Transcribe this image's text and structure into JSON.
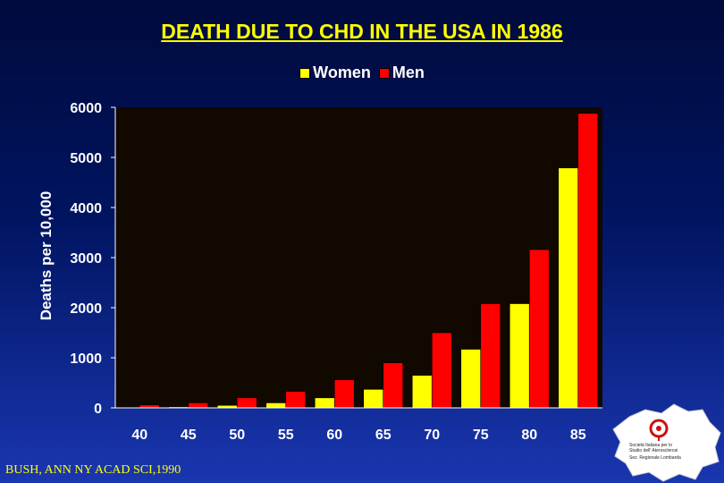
{
  "slide": {
    "source": "BUSH, ANN NY ACAD SCI,1990",
    "logo": {
      "line1": "Società Italiana per lo",
      "line2": "Studio dell' Aterosclerosi",
      "line3": "Sez. Regionale Lombarda"
    }
  },
  "colors": {
    "women": "#ffff00",
    "men": "#ff0000",
    "plot_bg": "#110800",
    "title": "#ffff00",
    "text": "#ffffff"
  },
  "chart_data": {
    "type": "bar",
    "title": "DEATH DUE TO CHD IN THE USA IN 1986",
    "ylabel": "Deaths per 10,000",
    "xlabel": "",
    "ylim": [
      0,
      6000
    ],
    "yticks": [
      0,
      1000,
      2000,
      3000,
      4000,
      5000,
      6000
    ],
    "categories": [
      "40",
      "45",
      "50",
      "55",
      "60",
      "65",
      "70",
      "75",
      "80",
      "85"
    ],
    "series": [
      {
        "name": "Women",
        "values": [
          5,
          20,
          50,
          100,
          200,
          370,
          650,
          1170,
          2080,
          4790
        ]
      },
      {
        "name": "Men",
        "values": [
          60,
          100,
          200,
          330,
          560,
          900,
          1500,
          2080,
          3160,
          5880
        ]
      }
    ],
    "legend": "top-center",
    "grid": false
  }
}
